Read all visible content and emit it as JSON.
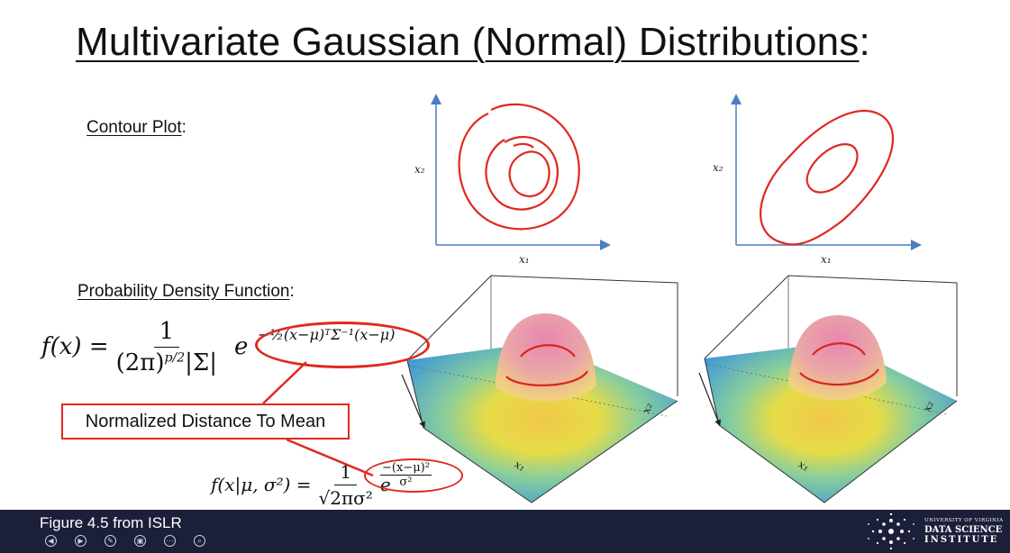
{
  "slide": {
    "title": "Multivariate Gaussian (Normal) Distributions",
    "title_colon": ":",
    "contour_heading": "Contour Plot",
    "pdf_heading": "Probability Density Function",
    "heading_colon": ":",
    "pdf_lhs": "f(x) =",
    "pdf_numerator": "1",
    "pdf_denominator_a": "(2π)",
    "pdf_denominator_sup": "p/2",
    "pdf_denominator_b": "|Σ|",
    "pdf_e": "e",
    "pdf_exponent": "−½(x−μ)ᵀΣ⁻¹(x−μ)",
    "callout_label": "Normalized Distance To Mean",
    "uni_lhs": "f(x|μ, σ²) =",
    "uni_numerator": "1",
    "uni_denominator": "√2πσ²",
    "uni_e": "e",
    "uni_exponent_num": "−(x−μ)²",
    "uni_exponent_den": "σ²",
    "axis_x1": "x₁",
    "axis_x2": "x₂"
  },
  "footer": {
    "caption": "Figure 4.5 from ISLR",
    "logo_line1": "UNIVERSITY OF VIRGINIA",
    "logo_line2": "DATA SCIENCE",
    "logo_line3": "INSTITUTE"
  },
  "controls": [
    {
      "name": "prev-icon",
      "glyph": "◀"
    },
    {
      "name": "next-icon",
      "glyph": "▶"
    },
    {
      "name": "pen-icon",
      "glyph": "✎"
    },
    {
      "name": "view-icon",
      "glyph": "▣"
    },
    {
      "name": "more-icon",
      "glyph": "⋯"
    },
    {
      "name": "zoom-icon",
      "glyph": "⌕"
    }
  ],
  "colors": {
    "annotation_red": "#e0281e",
    "axis_blue": "#4a7fc1",
    "footer_bg": "#1c1f3a"
  }
}
